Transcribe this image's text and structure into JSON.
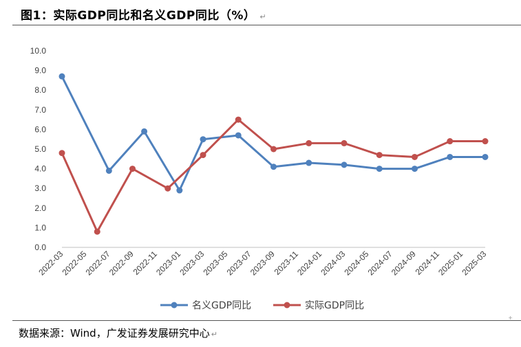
{
  "figure": {
    "title": "图1：实际GDP同比和名义GDP同比（%）",
    "source": "数据来源：Wind，广发证券发展研究中心"
  },
  "colors": {
    "nominal": "#4f81bd",
    "real": "#c0504d",
    "axis": "#bfbfbf",
    "text": "#404040"
  },
  "chart_data": {
    "type": "line",
    "title": "",
    "xlabel": "",
    "ylabel": "",
    "ylim": [
      0,
      10
    ],
    "yticks": [
      "0.0",
      "1.0",
      "2.0",
      "3.0",
      "4.0",
      "5.0",
      "6.0",
      "7.0",
      "8.0",
      "9.0",
      "10.0"
    ],
    "grid": false,
    "legend_position": "bottom",
    "categories": [
      "2022-03",
      "2022-05",
      "2022-07",
      "2022-09",
      "2022-11",
      "2023-01",
      "2023-03",
      "2023-05",
      "2023-07",
      "2023-09",
      "2023-11",
      "2024-01",
      "2024-03",
      "2024-05",
      "2024-07",
      "2024-09",
      "2024-11",
      "2025-01",
      "2025-03"
    ],
    "series": [
      {
        "name": "名义GDP同比",
        "color": "#4f81bd",
        "points": [
          {
            "x": "2022-03",
            "y": 8.7
          },
          {
            "x": "2022-07",
            "y": 3.9
          },
          {
            "x": "2022-10",
            "y": 5.9
          },
          {
            "x": "2023-01",
            "y": 2.9
          },
          {
            "x": "2023-03",
            "y": 5.5
          },
          {
            "x": "2023-06",
            "y": 5.7
          },
          {
            "x": "2023-09",
            "y": 4.1
          },
          {
            "x": "2023-12",
            "y": 4.3
          },
          {
            "x": "2024-03",
            "y": 4.2
          },
          {
            "x": "2024-06",
            "y": 4.0
          },
          {
            "x": "2024-09",
            "y": 4.0
          },
          {
            "x": "2024-12",
            "y": 4.6
          },
          {
            "x": "2025-03",
            "y": 4.6
          }
        ]
      },
      {
        "name": "实际GDP同比",
        "color": "#c0504d",
        "points": [
          {
            "x": "2022-03",
            "y": 4.8
          },
          {
            "x": "2022-06",
            "y": 0.8
          },
          {
            "x": "2022-09",
            "y": 4.0
          },
          {
            "x": "2022-12",
            "y": 3.0
          },
          {
            "x": "2023-03",
            "y": 4.7
          },
          {
            "x": "2023-06",
            "y": 6.5
          },
          {
            "x": "2023-09",
            "y": 5.0
          },
          {
            "x": "2023-12",
            "y": 5.3
          },
          {
            "x": "2024-03",
            "y": 5.3
          },
          {
            "x": "2024-06",
            "y": 4.7
          },
          {
            "x": "2024-09",
            "y": 4.6
          },
          {
            "x": "2024-12",
            "y": 5.4
          },
          {
            "x": "2025-03",
            "y": 5.4
          }
        ]
      }
    ]
  }
}
